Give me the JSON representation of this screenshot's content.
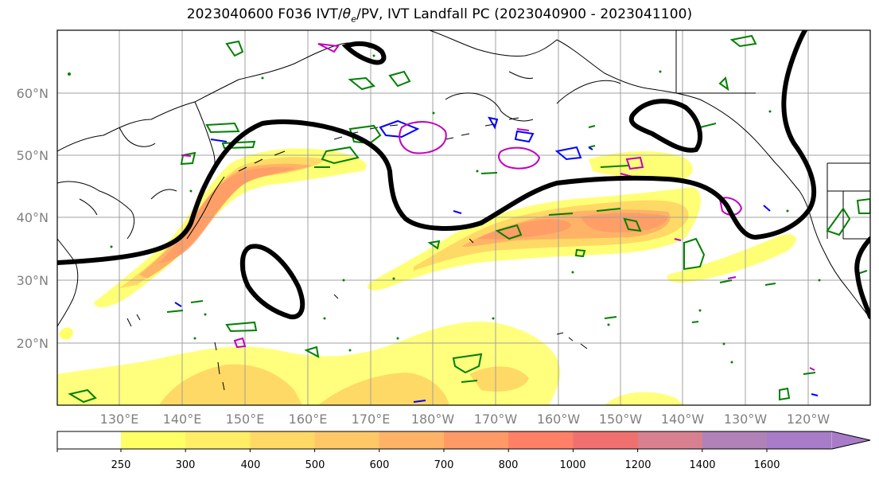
{
  "title_parts": {
    "prefix": "2023040600 F036 IVT/",
    "symbol": "θ",
    "subscript": "e",
    "suffix": "/PV, IVT Landfall PC (2023040900 - 2023041100)"
  },
  "map": {
    "latitude_labels": [
      "60°N",
      "50°N",
      "40°N",
      "30°N",
      "20°N"
    ],
    "longitude_labels": [
      "130°E",
      "140°E",
      "150°E",
      "160°E",
      "170°E",
      "180°W",
      "170°W",
      "160°W",
      "150°W",
      "140°W",
      "130°W",
      "120°W"
    ],
    "grid": true,
    "contour_colors": {
      "landfall_pc": "#000000",
      "theta_e": "#008000",
      "pv_low": "#0000ff",
      "pv_high": "#c000c0",
      "coastline": "#000000"
    }
  },
  "colorbar": {
    "ticks": [
      "250",
      "300",
      "400",
      "500",
      "600",
      "700",
      "800",
      "1000",
      "1200",
      "1400",
      "1600"
    ],
    "colors": [
      "#ffff66",
      "#ffee66",
      "#ffd966",
      "#ffc766",
      "#ffb366",
      "#ff9966",
      "#ff8066",
      "#f07070",
      "#d88090",
      "#b082b8",
      "#a87cc8"
    ],
    "extend": "max"
  }
}
